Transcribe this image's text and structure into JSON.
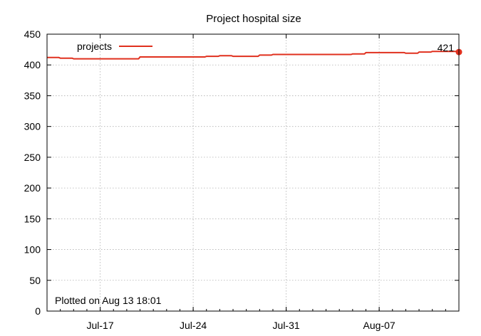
{
  "chart_data": {
    "type": "line",
    "title": "Project hospital size",
    "xlabel": "",
    "ylabel": "",
    "ylim": [
      0,
      450
    ],
    "yticks": [
      0,
      50,
      100,
      150,
      200,
      250,
      300,
      350,
      400,
      450
    ],
    "xlim": [
      "2023-07-13",
      "2023-08-13"
    ],
    "xticks": [
      {
        "date": "2023-07-17",
        "label": "Jul-17"
      },
      {
        "date": "2023-07-24",
        "label": "Jul-24"
      },
      {
        "date": "2023-07-31",
        "label": "Jul-31"
      },
      {
        "date": "2023-08-07",
        "label": "Aug-07"
      }
    ],
    "grid": true,
    "legend": {
      "position": "top-left",
      "entries": [
        "projects"
      ]
    },
    "series": [
      {
        "name": "projects",
        "color": "#e0301e",
        "x": [
          "2023-07-13",
          "2023-07-14",
          "2023-07-15",
          "2023-07-16",
          "2023-07-17",
          "2023-07-18",
          "2023-07-19",
          "2023-07-20",
          "2023-07-21",
          "2023-07-22",
          "2023-07-23",
          "2023-07-24",
          "2023-07-25",
          "2023-07-26",
          "2023-07-27",
          "2023-07-28",
          "2023-07-29",
          "2023-07-30",
          "2023-07-31",
          "2023-08-01",
          "2023-08-02",
          "2023-08-03",
          "2023-08-04",
          "2023-08-05",
          "2023-08-06",
          "2023-08-07",
          "2023-08-08",
          "2023-08-09",
          "2023-08-10",
          "2023-08-11",
          "2023-08-12",
          "2023-08-13"
        ],
        "values": [
          412,
          411,
          410,
          410,
          410,
          410,
          410,
          413,
          413,
          413,
          413,
          413,
          414,
          415,
          414,
          414,
          416,
          417,
          417,
          417,
          417,
          417,
          417,
          418,
          420,
          420,
          420,
          419,
          421,
          422,
          422,
          421
        ]
      }
    ],
    "end_label": "421",
    "annotation": "Plotted on Aug 13 18:01"
  }
}
